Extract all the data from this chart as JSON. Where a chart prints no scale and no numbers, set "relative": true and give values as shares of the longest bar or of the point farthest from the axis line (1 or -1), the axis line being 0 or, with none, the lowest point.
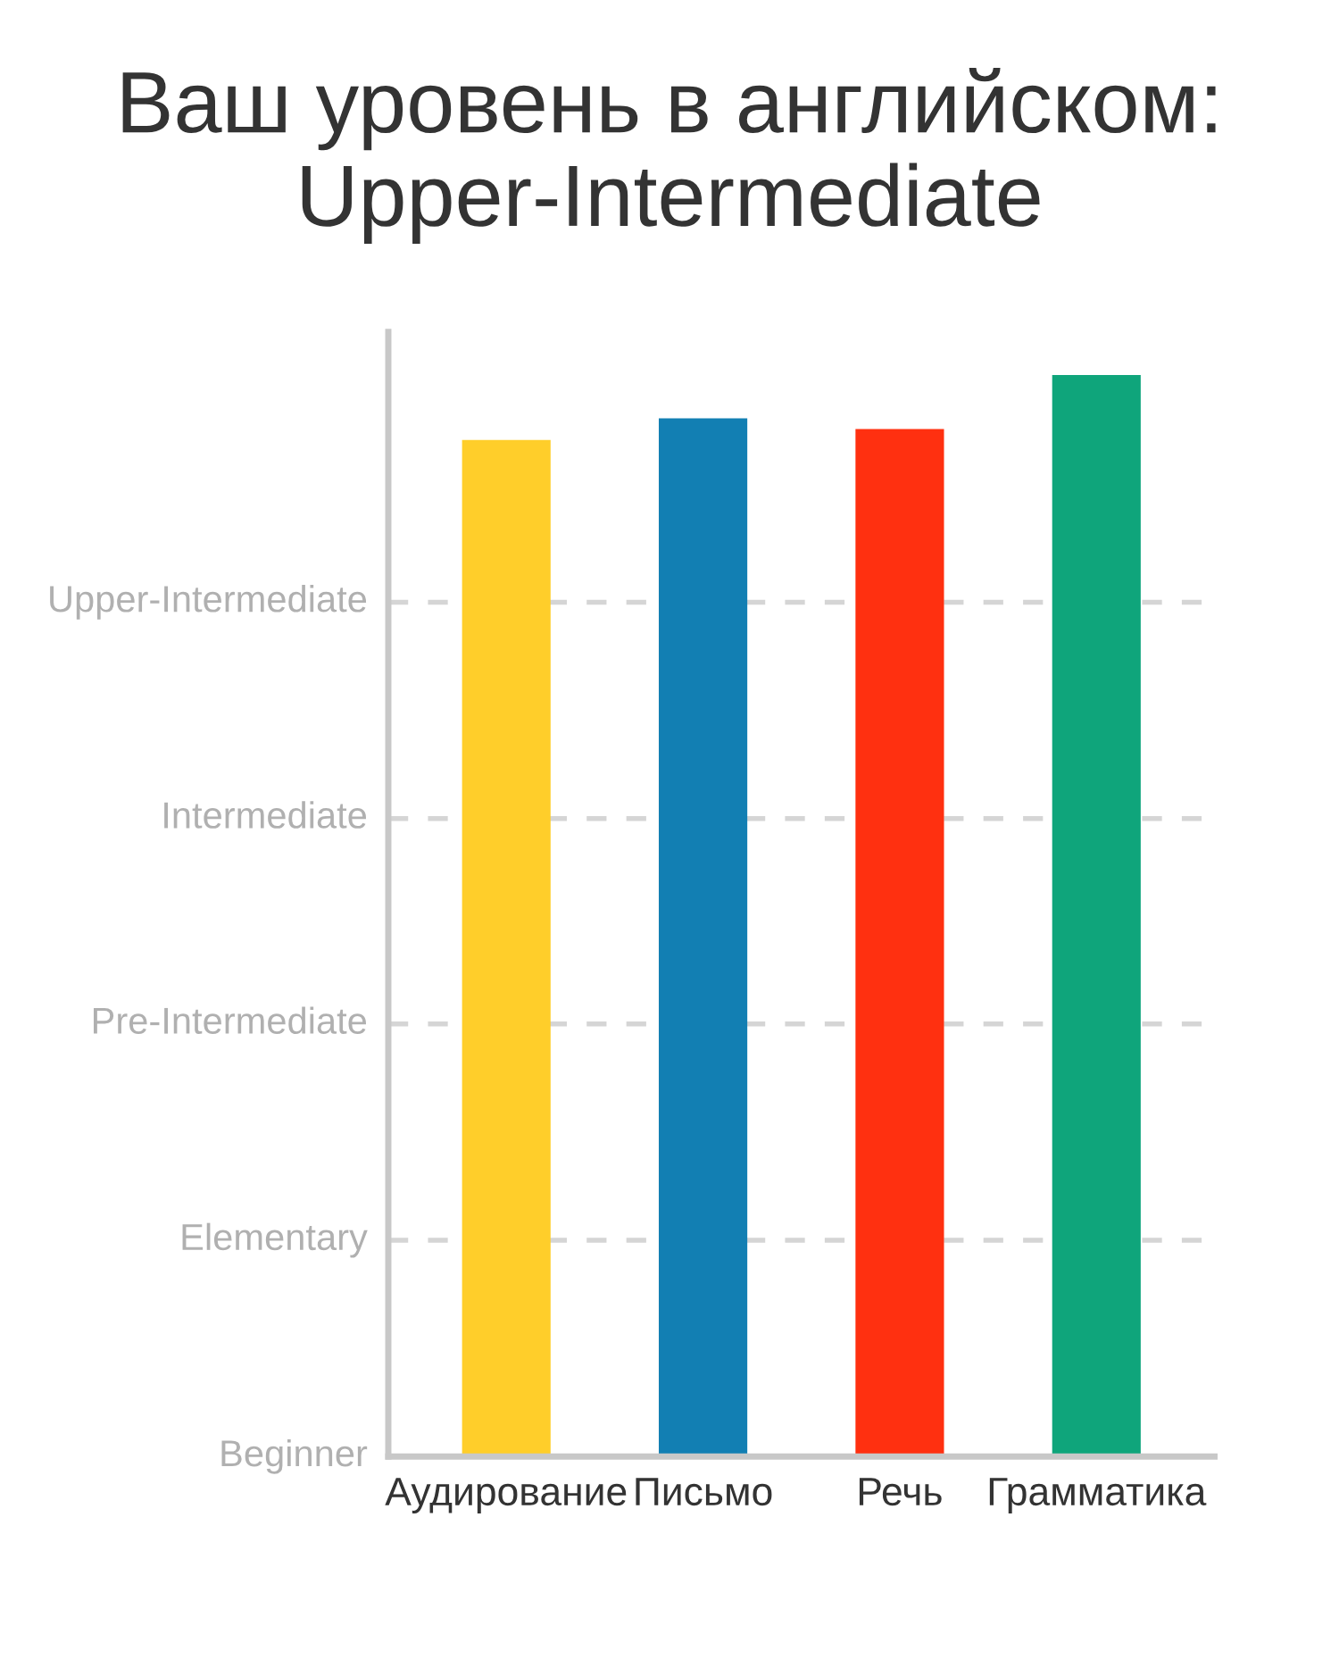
{
  "chart_data": {
    "type": "bar",
    "title": "Ваш уровень в английском:\nUpper-Intermediate",
    "categories": [
      "Аудирование",
      "Письмо",
      "Речь",
      "Грамматика"
    ],
    "values": [
      0.94,
      0.96,
      0.95,
      1
    ],
    "colors": [
      "#ffce2a",
      "#127fb3",
      "#ff3010",
      "#0fa57b"
    ],
    "relative": true,
    "ref_lines": [
      {
        "axis": "y",
        "value": 0.2,
        "label": "Elementary",
        "color": "#d5d5d5",
        "line_style": "dashed"
      },
      {
        "axis": "y",
        "value": 0.4,
        "label": "Pre-Intermediate",
        "color": "#d5d5d5",
        "line_style": "dashed"
      },
      {
        "axis": "y",
        "value": 0.59,
        "label": "Intermediate",
        "color": "#d5d5d5",
        "line_style": "dashed"
      },
      {
        "axis": "y",
        "value": 0.79,
        "label": "Upper-Intermediate",
        "color": "#d5d5d5",
        "line_style": "dashed"
      }
    ],
    "annotations": [
      "Beginner"
    ]
  }
}
